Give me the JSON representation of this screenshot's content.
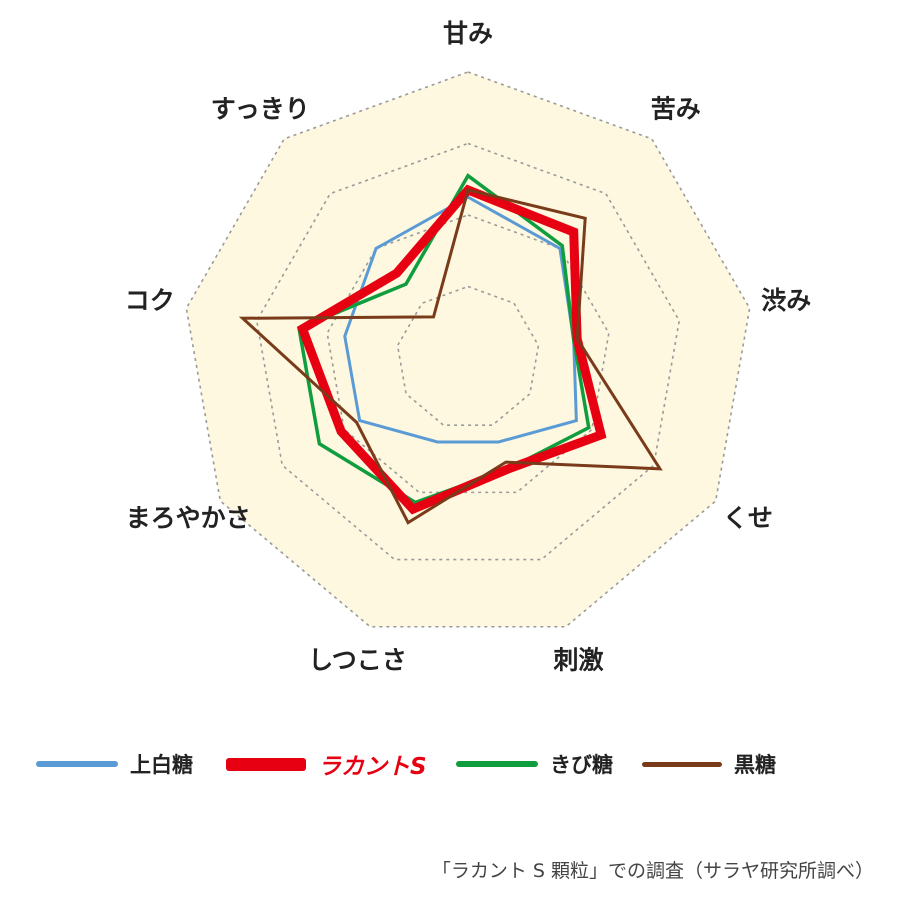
{
  "chart_data": {
    "type": "radar",
    "axes": [
      "甘み",
      "苦み",
      "渋み",
      "くせ",
      "刺激",
      "しつこさ",
      "まろやかさ",
      "コク",
      "すっきり"
    ],
    "rlim": [
      0,
      4
    ],
    "grid_levels": [
      1,
      2,
      3,
      4
    ],
    "series": [
      {
        "name": "上白糖",
        "color": "#5b9bd5",
        "values": [
          2.25,
          2.0,
          1.5,
          1.75,
          1.25,
          1.25,
          1.75,
          1.75,
          2.0
        ]
      },
      {
        "name": "ラカントS",
        "color": "#e60012",
        "values": [
          2.35,
          2.3,
          1.55,
          2.15,
          1.65,
          2.25,
          2.05,
          2.35,
          1.55
        ]
      },
      {
        "name": "きび糖",
        "color": "#0f9d3e",
        "values": [
          2.55,
          2.05,
          1.5,
          1.95,
          1.65,
          2.15,
          2.4,
          2.4,
          1.35
        ]
      },
      {
        "name": "黒糖",
        "color": "#7a3b1a",
        "values": [
          2.35,
          2.55,
          1.55,
          3.1,
          1.55,
          2.45,
          1.8,
          3.2,
          0.75
        ]
      }
    ],
    "legend_position": "bottom",
    "grid": true
  },
  "legend": [
    {
      "label": "上白糖"
    },
    {
      "label": "ラカントS"
    },
    {
      "label": "きび糖"
    },
    {
      "label": "黒糖"
    }
  ],
  "source_note": "「ラカント S 顆粒」での調査（サラヤ研究所調べ）"
}
